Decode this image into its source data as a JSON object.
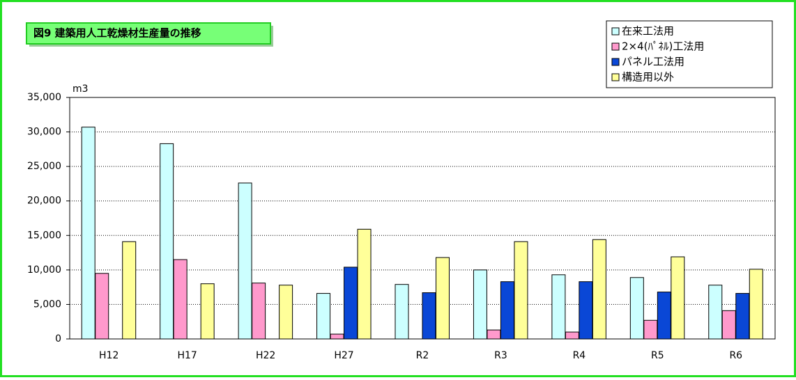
{
  "chart_data": {
    "type": "bar",
    "title": "図9 建築用人工乾燥材生産量の推移",
    "y_unit": "m3",
    "categories": [
      "H12",
      "H17",
      "H22",
      "H27",
      "R2",
      "R3",
      "R4",
      "R5",
      "R6"
    ],
    "series": [
      {
        "name": "在来工法用",
        "color": "#ccffff",
        "values": [
          30700,
          28300,
          22600,
          6600,
          7900,
          10000,
          9300,
          8900,
          7800
        ]
      },
      {
        "name": "2×4(ﾊﾟﾈﾙ)工法用",
        "color": "#ff99cc",
        "values": [
          9500,
          11500,
          8100,
          700,
          null,
          1300,
          1000,
          2700,
          4100
        ]
      },
      {
        "name": "パネル工法用",
        "color": "#0a47d6",
        "values": [
          null,
          null,
          null,
          10400,
          6700,
          8300,
          8300,
          6800,
          6600
        ]
      },
      {
        "name": "構造用以外",
        "color": "#ffff99",
        "values": [
          14100,
          8000,
          7800,
          15900,
          11800,
          14100,
          14400,
          11900,
          10100
        ]
      }
    ],
    "ylim": [
      0,
      35000
    ],
    "yticks": [
      0,
      {
        "value": 5000,
        "label": "5,000"
      },
      {
        "value": 10000,
        "label": "10,000"
      },
      {
        "value": 15000,
        "label": "15,000"
      },
      {
        "value": 20000,
        "label": "20,000"
      },
      {
        "value": 25000,
        "label": "25,000"
      },
      {
        "value": 30000,
        "label": "30,000"
      },
      {
        "value": 35000,
        "label": "35,000"
      }
    ],
    "grid": true,
    "legend": "top-right"
  }
}
